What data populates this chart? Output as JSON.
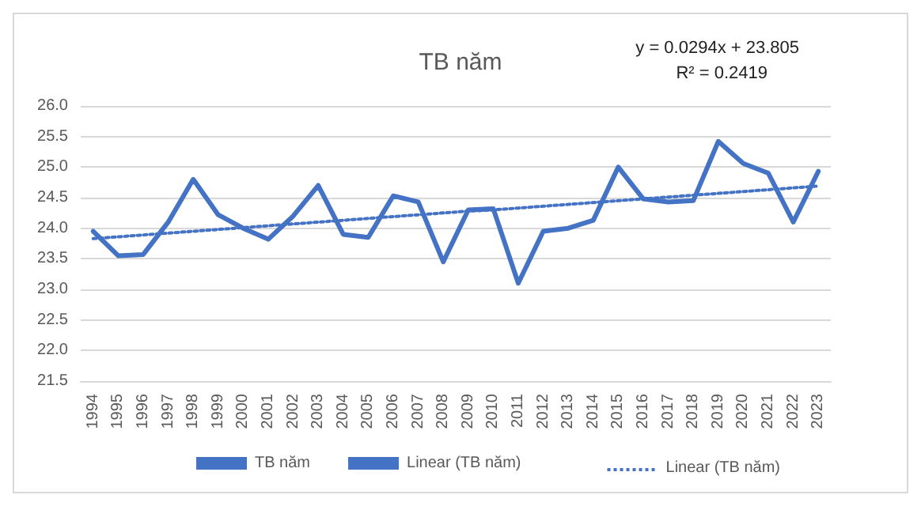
{
  "chart_data": {
    "type": "line",
    "title": "TB năm",
    "categories": [
      "1994",
      "1995",
      "1996",
      "1997",
      "1998",
      "1999",
      "2000",
      "2001",
      "2002",
      "2003",
      "2004",
      "2005",
      "2006",
      "2007",
      "2008",
      "2009",
      "2010",
      "2011",
      "2012",
      "2013",
      "2014",
      "2015",
      "2016",
      "2017",
      "2018",
      "2019",
      "2020",
      "2021",
      "2022",
      "2023"
    ],
    "series": [
      {
        "name": "TB năm",
        "color": "#4472c4",
        "line_style": "solid",
        "values": [
          23.95,
          23.55,
          23.57,
          24.1,
          24.8,
          24.22,
          24.0,
          23.82,
          24.2,
          24.7,
          23.9,
          23.85,
          24.53,
          24.43,
          23.45,
          24.3,
          24.32,
          23.1,
          23.95,
          24.0,
          24.13,
          25.0,
          24.48,
          24.43,
          24.45,
          25.42,
          25.06,
          24.9,
          24.1,
          24.93
        ]
      },
      {
        "name": "Linear (TB năm)",
        "color": "#4472c4",
        "line_style": "dotted",
        "values": [
          23.83,
          23.86,
          23.89,
          23.92,
          23.95,
          23.98,
          24.01,
          24.04,
          24.07,
          24.1,
          24.13,
          24.16,
          24.19,
          24.22,
          24.25,
          24.28,
          24.3,
          24.33,
          24.36,
          24.39,
          24.42,
          24.45,
          24.48,
          24.51,
          24.54,
          24.57,
          24.6,
          24.63,
          24.66,
          24.69
        ]
      }
    ],
    "ylim": [
      21.5,
      26.0
    ],
    "yticks": [
      21.5,
      {
        "value": 22,
        "label": "22.0"
      },
      22.5,
      {
        "value": 23,
        "label": "23.0"
      },
      23.5,
      {
        "value": 24,
        "label": "24.0"
      },
      24.5,
      {
        "value": 25,
        "label": "25.0"
      },
      25.5,
      {
        "value": 26,
        "label": "26.0"
      }
    ],
    "grid": "y",
    "legend": "bottom",
    "marker": "none",
    "annotations": [
      "y = 0.0294x + 23.805",
      "R² = 0.2419",
      "Linear (TB năm)"
    ]
  }
}
